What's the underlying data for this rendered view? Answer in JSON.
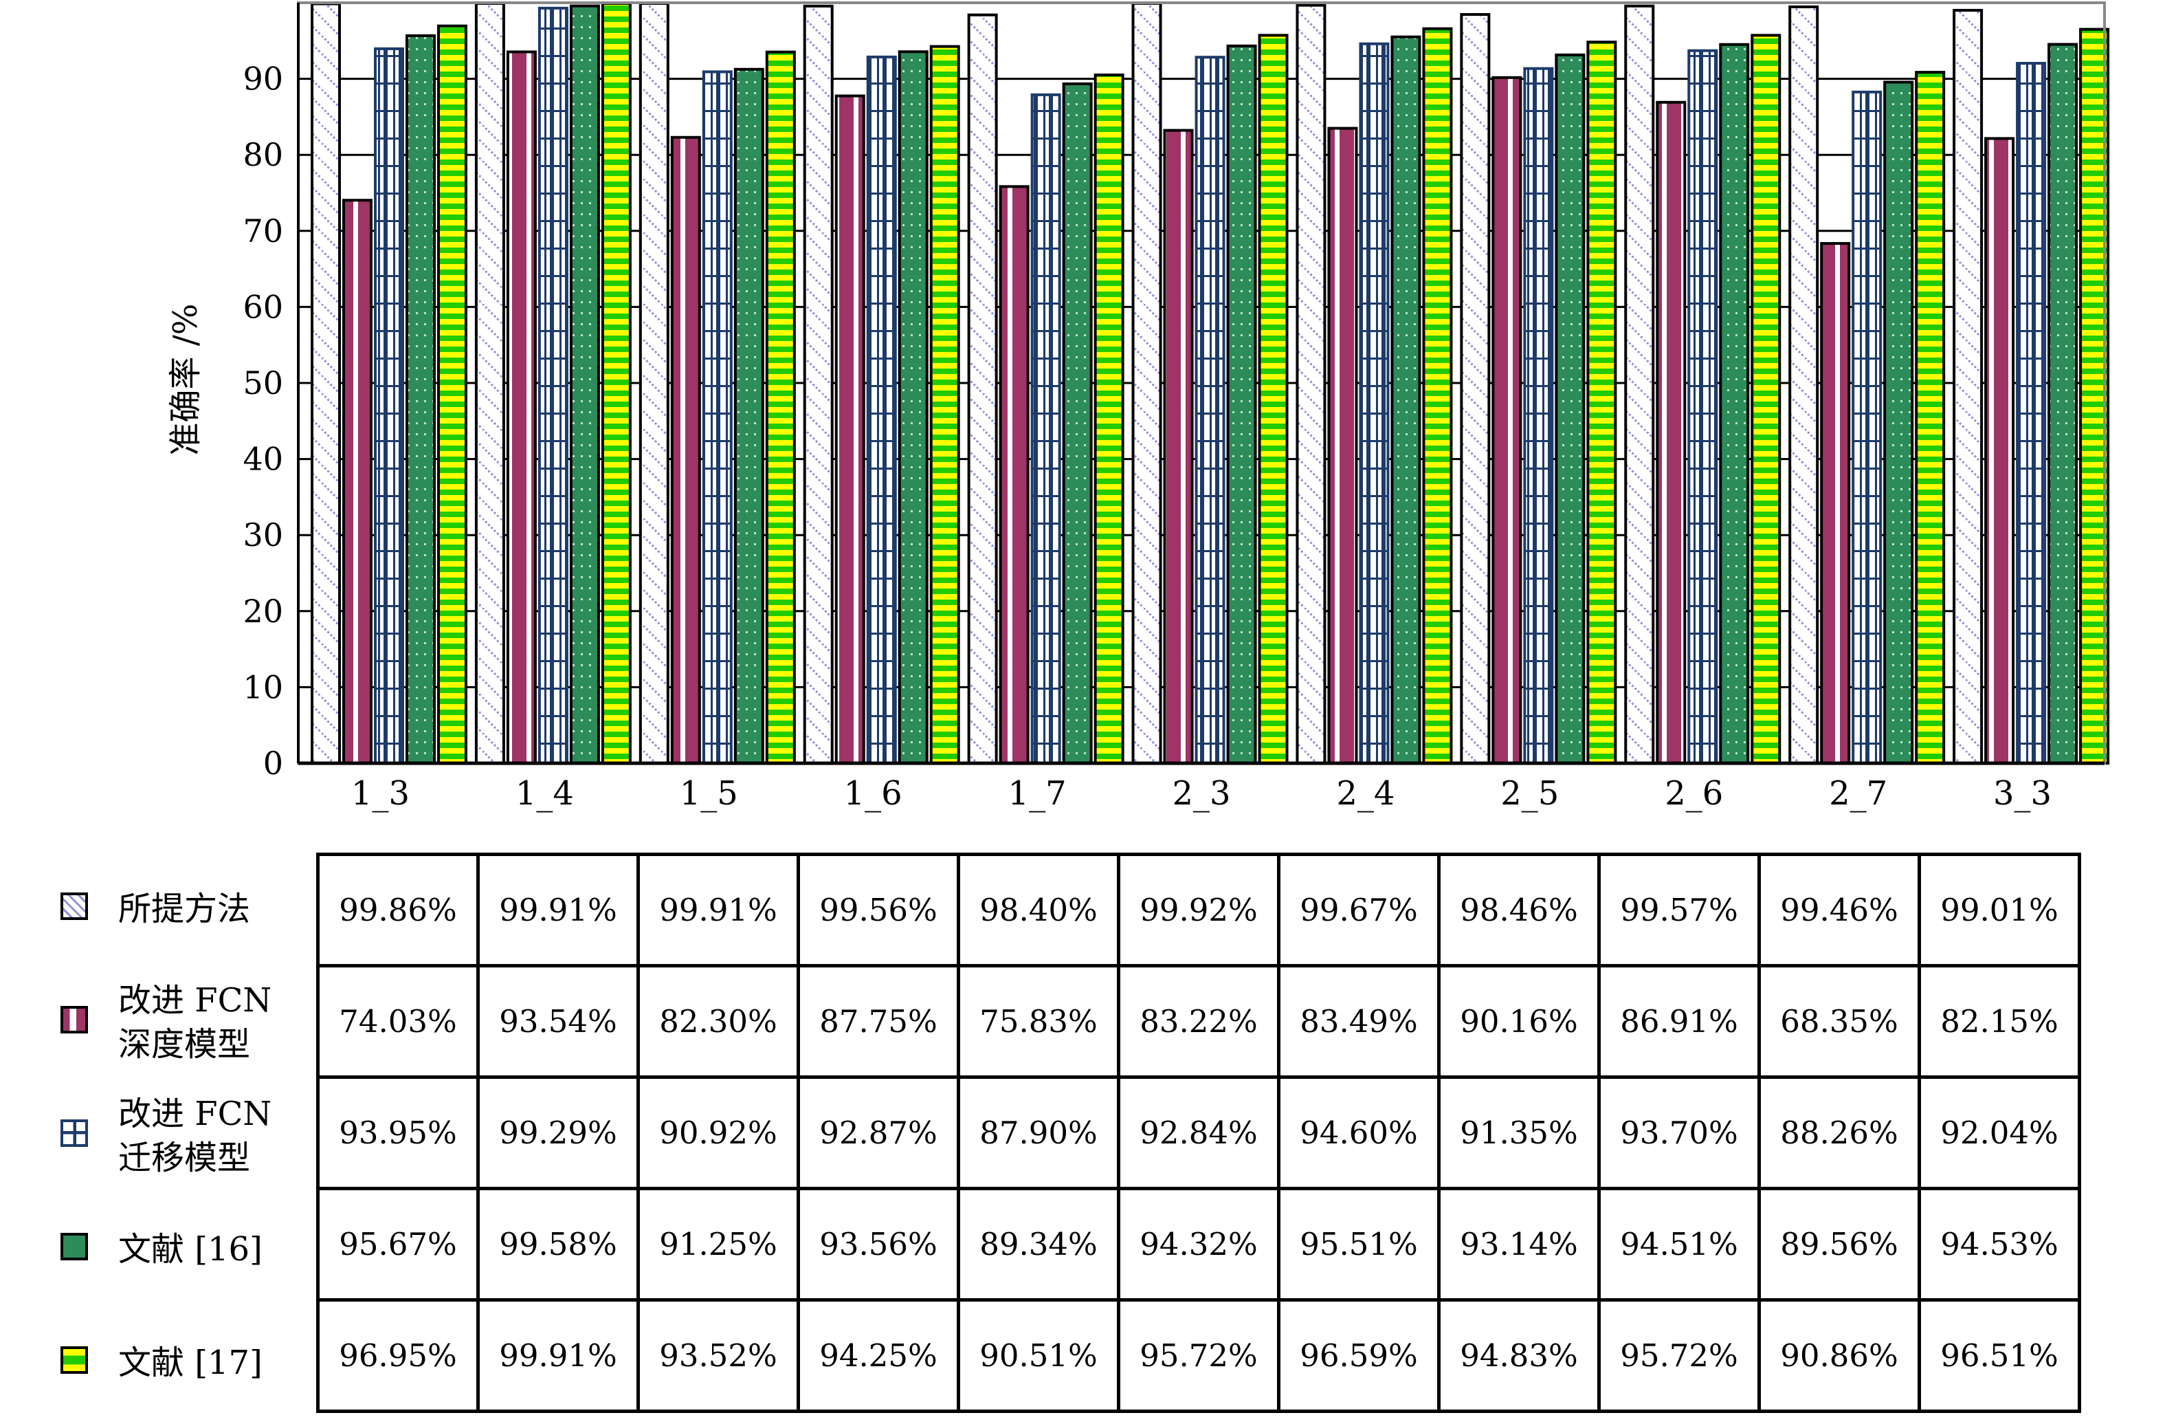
{
  "chart_data": {
    "type": "bar",
    "ylabel": "准确率 /%",
    "ylim": [
      0,
      100
    ],
    "yticks": [
      0,
      10,
      20,
      30,
      40,
      50,
      60,
      70,
      80,
      90
    ],
    "grid": "horizontal",
    "legend_placement": "left of table",
    "categories": [
      "1_3",
      "1_4",
      "1_5",
      "1_6",
      "1_7",
      "2_3",
      "2_4",
      "2_5",
      "2_6",
      "2_7",
      "3_3"
    ],
    "series": [
      {
        "name": "所提方法",
        "color": "#ffffff",
        "pattern": "diagonal-lines",
        "values": [
          99.86,
          99.91,
          99.91,
          99.56,
          98.4,
          99.92,
          99.67,
          98.46,
          99.57,
          99.46,
          99.01
        ],
        "labels": [
          "99.86%",
          "99.91%",
          "99.91%",
          "99.56%",
          "98.40%",
          "99.92%",
          "99.67%",
          "98.46%",
          "99.57%",
          "99.46%",
          "99.01%"
        ]
      },
      {
        "name": "改进 FCN\n深度模型",
        "color": "#9e3566",
        "pattern": "vertical-stripe",
        "values": [
          74.03,
          93.54,
          82.3,
          87.75,
          75.83,
          83.22,
          83.49,
          90.16,
          86.91,
          68.35,
          82.15
        ],
        "labels": [
          "74.03%",
          "93.54%",
          "82.30%",
          "87.75%",
          "75.83%",
          "83.22%",
          "83.49%",
          "90.16%",
          "86.91%",
          "68.35%",
          "82.15%"
        ]
      },
      {
        "name": "改进 FCN\n迁移模型",
        "color": "#1d3b6a",
        "pattern": "grid",
        "values": [
          93.95,
          99.29,
          90.92,
          92.87,
          87.9,
          92.84,
          94.6,
          91.35,
          93.7,
          88.26,
          92.04
        ],
        "labels": [
          "93.95%",
          "99.29%",
          "90.92%",
          "92.87%",
          "87.90%",
          "92.84%",
          "94.60%",
          "91.35%",
          "93.70%",
          "88.26%",
          "92.04%"
        ]
      },
      {
        "name": "文献 [16]",
        "color": "#2e8b5a",
        "pattern": "dots",
        "values": [
          95.67,
          99.58,
          91.25,
          93.56,
          89.34,
          94.32,
          95.51,
          93.14,
          94.51,
          89.56,
          94.53
        ],
        "labels": [
          "95.67%",
          "99.58%",
          "91.25%",
          "93.56%",
          "89.34%",
          "94.32%",
          "95.51%",
          "93.14%",
          "94.51%",
          "89.56%",
          "94.53%"
        ]
      },
      {
        "name": "文献 [17]",
        "color": "#22cc00",
        "pattern": "horizontal-stripes-yellow",
        "values": [
          96.95,
          99.91,
          93.52,
          94.25,
          90.51,
          95.72,
          96.59,
          94.83,
          95.72,
          90.86,
          96.51
        ],
        "labels": [
          "96.95%",
          "99.91%",
          "93.52%",
          "94.25%",
          "90.51%",
          "95.72%",
          "96.59%",
          "94.83%",
          "95.72%",
          "90.86%",
          "96.51%"
        ]
      }
    ]
  }
}
